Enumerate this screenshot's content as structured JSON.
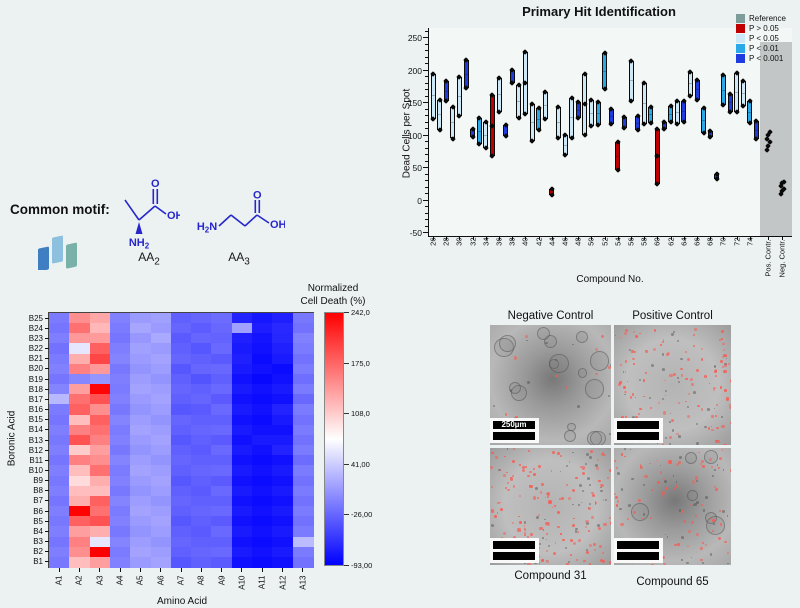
{
  "page": {
    "bg": "#ecf2f2"
  },
  "chart_data": [
    {
      "type": "box",
      "title": "Primary Hit Identification",
      "ylabel": "Dead Cells per Spot",
      "xlabel": "Compound No.",
      "ylim": [
        -55,
        265
      ],
      "yticks": [
        250,
        200,
        150,
        100,
        50,
        0,
        -50
      ],
      "legend_position": "top-right",
      "legend": [
        {
          "label": "Reference",
          "color": "#7d9d9b"
        },
        {
          "label": "P > 0.05",
          "color": "#c00000"
        },
        {
          "label": "P < 0.05",
          "color": "#cde9f7"
        },
        {
          "label": "P < 0.01",
          "color": "#2ba8e8"
        },
        {
          "label": "P < 0.001",
          "color": "#1e3ce0"
        }
      ],
      "x_major_labels": [
        "26",
        "28",
        "30",
        "32",
        "34",
        "36",
        "38",
        "40",
        "42",
        "44",
        "46",
        "48",
        "50",
        "52",
        "54",
        "56",
        "58",
        "60",
        "62",
        "64",
        "66",
        "68",
        "70",
        "72",
        "74"
      ],
      "boxes": [
        {
          "no": 26,
          "p": "P < 0.05",
          "lo": 125,
          "hi": 195
        },
        {
          "no": 27,
          "p": "P < 0.05",
          "lo": 108,
          "hi": 155
        },
        {
          "no": 28,
          "p": "P < 0.001",
          "lo": 153,
          "hi": 183
        },
        {
          "no": 29,
          "p": "P < 0.05",
          "lo": 95,
          "hi": 143
        },
        {
          "no": 30,
          "p": "P < 0.05",
          "lo": 130,
          "hi": 190
        },
        {
          "no": 31,
          "p": "P < 0.001",
          "lo": 172,
          "hi": 216
        },
        {
          "no": 32,
          "p": "P < 0.001",
          "lo": 98,
          "hi": 110
        },
        {
          "no": 33,
          "p": "P < 0.01",
          "lo": 86,
          "hi": 126
        },
        {
          "no": 34,
          "p": "P < 0.05",
          "lo": 80,
          "hi": 120
        },
        {
          "no": 35,
          "p": "P > 0.05",
          "lo": 68,
          "hi": 162
        },
        {
          "no": 36,
          "p": "P < 0.05",
          "lo": 136,
          "hi": 188
        },
        {
          "no": 37,
          "p": "P < 0.001",
          "lo": 99,
          "hi": 116
        },
        {
          "no": 38,
          "p": "P < 0.001",
          "lo": 180,
          "hi": 200
        },
        {
          "no": 39,
          "p": "P < 0.05",
          "lo": 126,
          "hi": 178
        },
        {
          "no": 40,
          "p": "P < 0.05",
          "lo": 133,
          "hi": 228
        },
        {
          "no": 41,
          "p": "P < 0.05",
          "lo": 91,
          "hi": 148
        },
        {
          "no": 42,
          "p": "P < 0.01",
          "lo": 108,
          "hi": 142
        },
        {
          "no": 43,
          "p": "P < 0.05",
          "lo": 125,
          "hi": 166
        },
        {
          "no": 44,
          "p": "P > 0.05",
          "lo": 8,
          "hi": 18
        },
        {
          "no": 45,
          "p": "P < 0.05",
          "lo": 96,
          "hi": 143
        },
        {
          "no": 46,
          "p": "P < 0.05",
          "lo": 70,
          "hi": 100
        },
        {
          "no": 47,
          "p": "P < 0.05",
          "lo": 96,
          "hi": 158
        },
        {
          "no": 48,
          "p": "P < 0.001",
          "lo": 126,
          "hi": 151
        },
        {
          "no": 49,
          "p": "P < 0.05",
          "lo": 101,
          "hi": 194
        },
        {
          "no": 50,
          "p": "P < 0.05",
          "lo": 114,
          "hi": 154
        },
        {
          "no": 51,
          "p": "P < 0.01",
          "lo": 116,
          "hi": 151
        },
        {
          "no": 52,
          "p": "P < 0.01",
          "lo": 171,
          "hi": 226
        },
        {
          "no": 53,
          "p": "P < 0.001",
          "lo": 118,
          "hi": 140
        },
        {
          "no": 54,
          "p": "P > 0.05",
          "lo": 46,
          "hi": 90
        },
        {
          "no": 55,
          "p": "P < 0.001",
          "lo": 111,
          "hi": 128
        },
        {
          "no": 56,
          "p": "P < 0.05",
          "lo": 153,
          "hi": 214
        },
        {
          "no": 57,
          "p": "P < 0.001",
          "lo": 108,
          "hi": 130
        },
        {
          "no": 58,
          "p": "P < 0.05",
          "lo": 117,
          "hi": 181
        },
        {
          "no": 59,
          "p": "P < 0.01",
          "lo": 119,
          "hi": 144
        },
        {
          "no": 60,
          "p": "P > 0.05",
          "lo": 25,
          "hi": 110
        },
        {
          "no": 61,
          "p": "P < 0.001",
          "lo": 110,
          "hi": 120
        },
        {
          "no": 62,
          "p": "P < 0.01",
          "lo": 120,
          "hi": 145
        },
        {
          "no": 63,
          "p": "P < 0.05",
          "lo": 118,
          "hi": 152
        },
        {
          "no": 64,
          "p": "P < 0.001",
          "lo": 121,
          "hi": 152
        },
        {
          "no": 65,
          "p": "P < 0.05",
          "lo": 160,
          "hi": 198
        },
        {
          "no": 66,
          "p": "P < 0.001",
          "lo": 155,
          "hi": 185
        },
        {
          "no": 67,
          "p": "P < 0.01",
          "lo": 104,
          "hi": 142
        },
        {
          "no": 68,
          "p": "P < 0.001",
          "lo": 97,
          "hi": 106
        },
        {
          "no": 69,
          "p": "P < 0.001",
          "lo": 33,
          "hi": 41
        },
        {
          "no": 70,
          "p": "P < 0.01",
          "lo": 147,
          "hi": 192
        },
        {
          "no": 71,
          "p": "P < 0.001",
          "lo": 136,
          "hi": 164
        },
        {
          "no": 72,
          "p": "P < 0.05",
          "lo": 136,
          "hi": 196
        },
        {
          "no": 73,
          "p": "P < 0.05",
          "lo": 145,
          "hi": 183
        },
        {
          "no": 74,
          "p": "P < 0.01",
          "lo": 119,
          "hi": 152
        },
        {
          "no": 75,
          "p": "P < 0.001",
          "lo": 94,
          "hi": 122
        }
      ],
      "controls": [
        {
          "label": "Pos. Contr.",
          "points": [
            77,
            84,
            90,
            95,
            101,
            105
          ]
        },
        {
          "label": "Neg. Contr.",
          "points": [
            9,
            14,
            18,
            22,
            26,
            28
          ]
        }
      ],
      "reference_band": {
        "label": "Reference",
        "color": "#c3c6c6",
        "top_value": 243
      }
    },
    {
      "type": "heatmap",
      "colorbar_title_line1": "Normalized",
      "colorbar_title_line2": "Cell Death (%)",
      "colorbar_ticks": [
        "242,0",
        "175,0",
        "108,0",
        "41,00",
        "-26,00",
        "-93,00"
      ],
      "vmin": -93,
      "vmax": 242,
      "xlabel": "Amino Acid",
      "ylabel": "Boronic Acid",
      "columns": [
        "A1",
        "A2",
        "A3",
        "A4",
        "A5",
        "A6",
        "A7",
        "A8",
        "A9",
        "A10",
        "A11",
        "A12",
        "A13"
      ],
      "rows_top_to_bottom": [
        "B25",
        "B24",
        "B23",
        "B22",
        "B21",
        "B20",
        "B19",
        "B18",
        "B17",
        "B16",
        "B15",
        "B14",
        "B13",
        "B12",
        "B11",
        "B10",
        "B9",
        "B8",
        "B7",
        "B6",
        "B5",
        "B4",
        "B3",
        "B2",
        "B1"
      ],
      "values": [
        [
          -12,
          148,
          132,
          -8,
          8,
          12,
          -30,
          -26,
          -22,
          -70,
          -78,
          -72,
          -14
        ],
        [
          -16,
          168,
          122,
          -12,
          16,
          8,
          -26,
          -32,
          -25,
          12,
          -74,
          -66,
          -18
        ],
        [
          -10,
          142,
          140,
          -16,
          6,
          18,
          -34,
          -26,
          -28,
          -72,
          -80,
          -68,
          -8
        ],
        [
          -18,
          58,
          178,
          -10,
          12,
          8,
          -30,
          -36,
          -24,
          -76,
          -82,
          -72,
          -12
        ],
        [
          -12,
          128,
          196,
          -6,
          8,
          14,
          -26,
          -30,
          -34,
          -72,
          -86,
          -76,
          -18
        ],
        [
          -8,
          158,
          142,
          -14,
          4,
          10,
          -36,
          -26,
          -25,
          -76,
          -82,
          -86,
          -12
        ],
        [
          -16,
          -5,
          5,
          -10,
          10,
          4,
          -30,
          -38,
          -30,
          -82,
          -88,
          -82,
          -20
        ],
        [
          -6,
          138,
          238,
          -12,
          14,
          10,
          -26,
          -30,
          -24,
          -76,
          -82,
          -76,
          -12
        ],
        [
          28,
          168,
          188,
          -8,
          8,
          14,
          -30,
          -26,
          -34,
          -82,
          -86,
          -82,
          -24
        ],
        [
          -12,
          178,
          148,
          -14,
          4,
          10,
          -36,
          -34,
          -24,
          -76,
          -82,
          -70,
          -12
        ],
        [
          -16,
          118,
          178,
          -6,
          10,
          4,
          -26,
          -30,
          -30,
          -82,
          -86,
          -76,
          -18
        ],
        [
          -10,
          158,
          168,
          -12,
          14,
          10,
          -30,
          -26,
          -24,
          -76,
          -82,
          -82,
          -12
        ],
        [
          -14,
          188,
          158,
          -8,
          8,
          14,
          -36,
          -30,
          -34,
          -82,
          -76,
          -76,
          -18
        ],
        [
          -10,
          108,
          138,
          -14,
          4,
          10,
          -30,
          -34,
          -24,
          -76,
          -82,
          -70,
          -12
        ],
        [
          -16,
          158,
          148,
          -6,
          10,
          4,
          -26,
          -30,
          -30,
          -82,
          -86,
          -82,
          -22
        ],
        [
          -10,
          118,
          168,
          -12,
          14,
          10,
          -30,
          -26,
          -24,
          -76,
          -82,
          -76,
          -12
        ],
        [
          -14,
          98,
          128,
          -8,
          8,
          14,
          -36,
          -30,
          -34,
          -82,
          -86,
          -82,
          -18
        ],
        [
          -10,
          118,
          118,
          -14,
          4,
          10,
          -30,
          -34,
          -24,
          -76,
          -82,
          -76,
          -12
        ],
        [
          -16,
          128,
          178,
          -6,
          10,
          4,
          -26,
          -30,
          -30,
          -82,
          -86,
          -82,
          -18
        ],
        [
          -10,
          240,
          168,
          -12,
          14,
          10,
          -30,
          -26,
          -24,
          -76,
          -82,
          -76,
          -12
        ],
        [
          -14,
          178,
          188,
          -8,
          8,
          14,
          -36,
          -30,
          -34,
          -82,
          -86,
          -82,
          -18
        ],
        [
          -10,
          138,
          128,
          -14,
          4,
          10,
          -30,
          -34,
          -24,
          -76,
          -82,
          -76,
          -12
        ],
        [
          -16,
          158,
          58,
          -6,
          10,
          4,
          -26,
          -30,
          -30,
          -82,
          -86,
          -82,
          30
        ],
        [
          -10,
          148,
          242,
          -12,
          14,
          10,
          -30,
          -26,
          -24,
          -76,
          -82,
          -76,
          -12
        ],
        [
          -14,
          118,
          138,
          -8,
          8,
          14,
          -36,
          -30,
          -34,
          -82,
          -86,
          -82,
          -18
        ]
      ]
    }
  ],
  "motif": {
    "heading": "Common motif:",
    "structure_color": "#2626cc",
    "icon_colors": [
      "#3f7fc1",
      "#8cc0de",
      "#79b1a8"
    ],
    "structures": [
      {
        "name": "AA",
        "sub": "2",
        "atom_o": "O",
        "atom_oh": "OH",
        "amine_main": "NH",
        "amine_sub": "2"
      },
      {
        "name": "AA",
        "sub": "3",
        "atom_o": "O",
        "atom_oh": "OH",
        "amine_pre": "H",
        "amine_sub": "2",
        "amine_post": "N"
      }
    ]
  },
  "microscopy": {
    "panels": [
      {
        "label": "Negative Control",
        "label_pos": "top",
        "red_dots": 14,
        "spheroids": 16,
        "specks": 12,
        "dark_center": true,
        "scalebar_text": "250µm"
      },
      {
        "label": "Positive Control",
        "label_pos": "top",
        "red_dots": 115,
        "spheroids": 0,
        "specks": 45,
        "dark_center": false,
        "scalebar_text": ""
      },
      {
        "label": "Compound 31",
        "label_pos": "bottom",
        "red_dots": 150,
        "spheroids": 0,
        "specks": 50,
        "dark_center": false,
        "scalebar_text": ""
      },
      {
        "label": "Compound 65",
        "label_pos": "bottom",
        "red_dots": 85,
        "spheroids": 6,
        "specks": 40,
        "dark_center": true,
        "scalebar_text": ""
      }
    ]
  }
}
